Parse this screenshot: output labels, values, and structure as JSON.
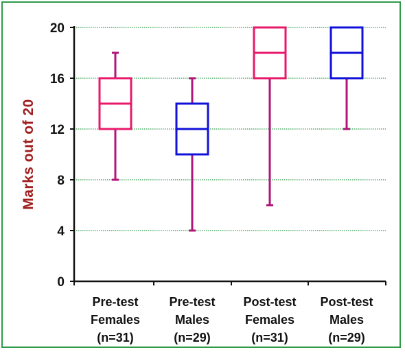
{
  "chart_data": {
    "type": "box",
    "title": "",
    "xlabel": "",
    "ylabel": "Marks out of 20",
    "ylim": [
      0,
      20
    ],
    "yticks": [
      0,
      4,
      8,
      12,
      16,
      20
    ],
    "grid": "horizontal dotted",
    "categories": [
      {
        "lines": [
          "Pre-test",
          "Females",
          "(n=31)"
        ],
        "min": 8,
        "q1": 12,
        "median": 14,
        "q3": 16,
        "max": 18,
        "color": "#e8196b"
      },
      {
        "lines": [
          "Pre-test",
          "Males",
          "(n=29)"
        ],
        "min": 4,
        "q1": 10,
        "median": 12,
        "q3": 14,
        "max": 16,
        "color": "#1010d8"
      },
      {
        "lines": [
          "Post-test",
          "Females",
          "(n=31)"
        ],
        "min": 6,
        "q1": 16,
        "median": 18,
        "q3": 20,
        "max": 20,
        "color": "#e8196b"
      },
      {
        "lines": [
          "Post-test",
          "Males",
          "(n=29)"
        ],
        "min": 12,
        "q1": 16,
        "median": 18,
        "q3": 20,
        "max": 20,
        "color": "#1010d8"
      }
    ],
    "whisker_color": "#b0157a",
    "ylabel_color": "#a01e1e",
    "grid_color": "#2e9a4a",
    "axis_color": "#111111",
    "frame_color": "#2e9a4a"
  }
}
